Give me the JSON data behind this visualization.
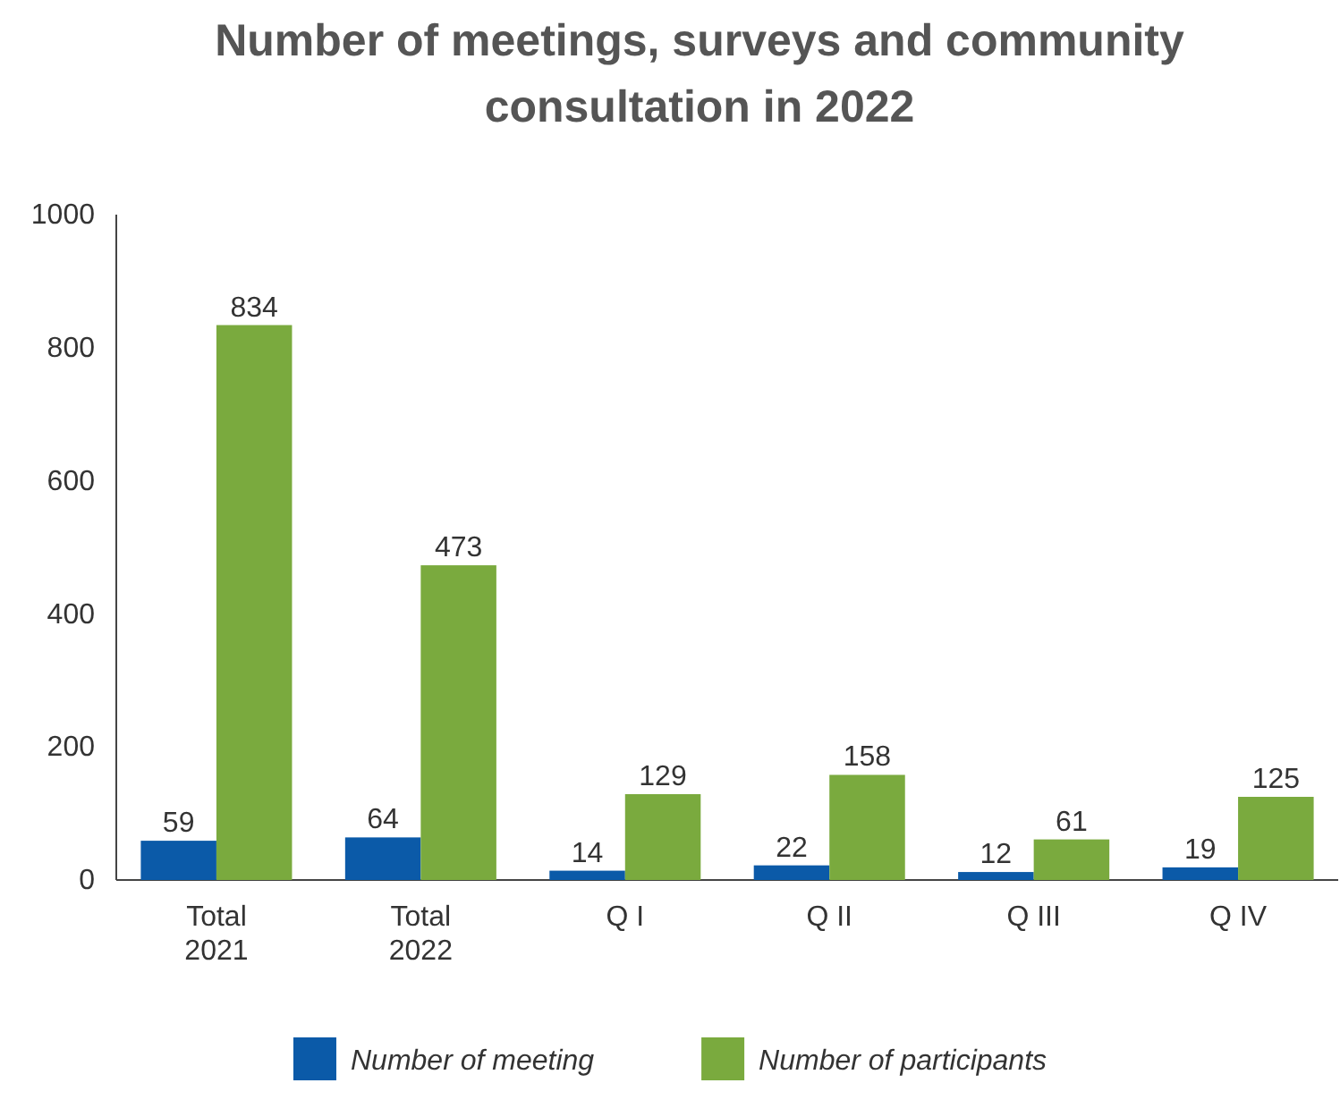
{
  "chart_data": {
    "type": "bar",
    "title": "Number of meetings, surveys and community consultation in 2022",
    "categories": [
      "Total 2021",
      "Total 2022",
      "Q I",
      "Q II",
      "Q III",
      "Q IV"
    ],
    "series": [
      {
        "name": "Number of meeting",
        "color": "#0b5aa8",
        "values": [
          59,
          64,
          14,
          22,
          12,
          19
        ]
      },
      {
        "name": "Number of participants",
        "color": "#7aaa3e",
        "values": [
          834,
          473,
          129,
          158,
          61,
          125
        ]
      }
    ],
    "ylim": [
      0,
      1000
    ],
    "yticks": [
      0,
      200,
      400,
      600,
      800,
      1000
    ],
    "grid": false,
    "legend": "bottom",
    "data_labels": true
  }
}
